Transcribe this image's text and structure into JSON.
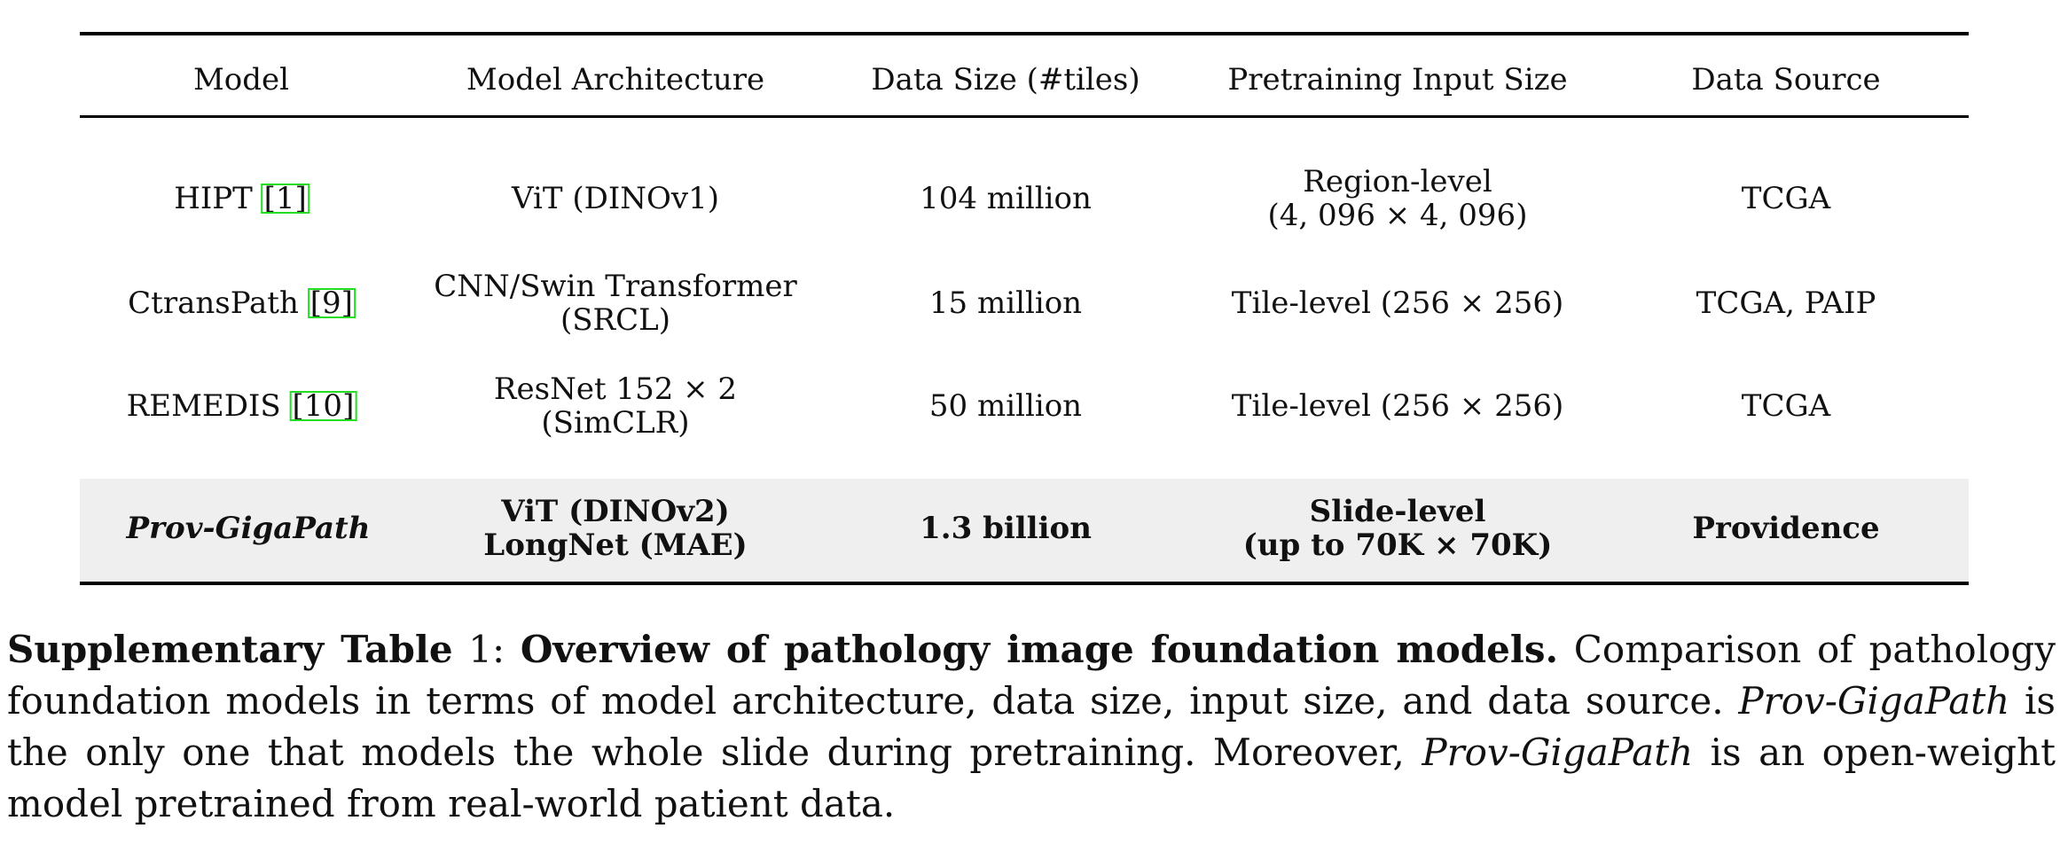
{
  "table": {
    "headers": [
      "Model",
      "Model Architecture",
      "Data Size (#tiles)",
      "Pretraining Input Size",
      "Data Source"
    ],
    "rows": [
      {
        "model": "HIPT",
        "ref": "1",
        "arch": [
          "ViT (DINOv1)"
        ],
        "data_size": "104 million",
        "input_size": [
          "Region-level",
          "(4, 096 × 4, 096)"
        ],
        "source": "TCGA"
      },
      {
        "model": "CtransPath",
        "ref": "9",
        "arch": [
          "CNN/Swin Transformer",
          "(SRCL)"
        ],
        "data_size": "15 million",
        "input_size": [
          "Tile-level (256 × 256)"
        ],
        "source": "TCGA, PAIP"
      },
      {
        "model": "REMEDIS",
        "ref": "10",
        "arch": [
          "ResNet 152 × 2",
          "(SimCLR)"
        ],
        "data_size": "50 million",
        "input_size": [
          "Tile-level (256 × 256)"
        ],
        "source": "TCGA"
      },
      {
        "model": "Prov-GigaPath",
        "ref": "",
        "arch": [
          "ViT (DINOv2)",
          "LongNet (MAE)"
        ],
        "data_size": "1.3 billion",
        "input_size": [
          "Slide-level",
          "(up to 70K × 70K)"
        ],
        "source": "Providence"
      }
    ]
  },
  "caption": {
    "label": "Supplementary Table",
    "number": " 1: ",
    "title": "Overview of pathology image foundation models.",
    "text1": " Comparison of pathology foundation models in terms of model architecture, data size, input size, and data source. ",
    "em1": "Prov-GigaPath",
    "text2": " is the only one that models the whole slide during pretraining. Moreover, ",
    "em2": "Prov-GigaPath",
    "text3": " is an open-weight model pretrained from real-world patient data."
  }
}
